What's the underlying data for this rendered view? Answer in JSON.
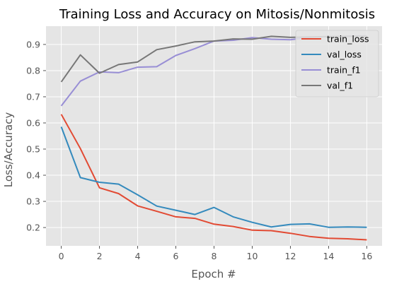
{
  "chart_data": {
    "type": "line",
    "title": "Training Loss and Accuracy on Mitosis/Nonmitosis",
    "xlabel": "Epoch #",
    "ylabel": "Loss/Accuracy",
    "xlim": [
      -0.8,
      16.8
    ],
    "ylim": [
      0.13,
      0.97
    ],
    "xticks": [
      0,
      2,
      4,
      6,
      8,
      10,
      12,
      14,
      16
    ],
    "yticks": [
      0.2,
      0.3,
      0.4,
      0.5,
      0.6,
      0.7,
      0.8,
      0.9
    ],
    "grid": true,
    "legend_position": "top-right",
    "x": [
      0,
      1,
      2,
      3,
      4,
      5,
      6,
      7,
      8,
      9,
      10,
      11,
      12,
      13,
      14,
      15,
      16
    ],
    "series": [
      {
        "name": "train_loss",
        "color": "#E24A33",
        "values": [
          0.633,
          0.502,
          0.352,
          0.33,
          0.283,
          0.262,
          0.241,
          0.235,
          0.213,
          0.204,
          0.19,
          0.188,
          0.178,
          0.166,
          0.159,
          0.157,
          0.153
        ]
      },
      {
        "name": "val_loss",
        "color": "#348ABD",
        "values": [
          0.585,
          0.391,
          0.373,
          0.366,
          0.325,
          0.282,
          0.266,
          0.25,
          0.277,
          0.241,
          0.22,
          0.202,
          0.212,
          0.214,
          0.201,
          0.202,
          0.201
        ]
      },
      {
        "name": "train_f1",
        "color": "#988ED5",
        "values": [
          0.665,
          0.76,
          0.795,
          0.792,
          0.813,
          0.815,
          0.858,
          0.884,
          0.913,
          0.916,
          0.926,
          0.92,
          0.918,
          0.927,
          0.93,
          0.932,
          0.933
        ]
      },
      {
        "name": "val_f1",
        "color": "#777777",
        "values": [
          0.757,
          0.86,
          0.79,
          0.823,
          0.833,
          0.88,
          0.894,
          0.91,
          0.913,
          0.921,
          0.92,
          0.931,
          0.927,
          0.929,
          0.93,
          0.931,
          0.932
        ]
      }
    ]
  }
}
